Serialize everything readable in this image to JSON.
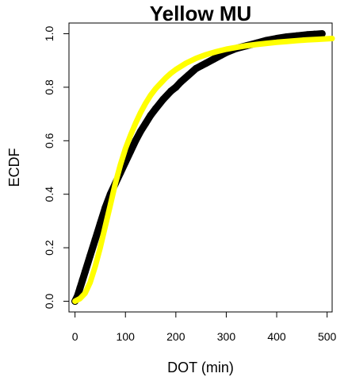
{
  "chart_data": {
    "type": "line",
    "title": "Yellow MU",
    "xlabel": "DOT (min)",
    "ylabel": "ECDF",
    "xlim": [
      -12,
      510
    ],
    "ylim": [
      -0.04,
      1.04
    ],
    "xticks": [
      "0",
      "100",
      "200",
      "300",
      "400",
      "500"
    ],
    "yticks": [
      "0.0",
      "0.2",
      "0.4",
      "0.6",
      "0.8",
      "1.0"
    ],
    "grid": false,
    "legend": "none",
    "series": [
      {
        "style": "empirical-points",
        "color": "#000000",
        "x": [
          0,
          5,
          10,
          15,
          20,
          30,
          40,
          50,
          60,
          70,
          80,
          90,
          100,
          110,
          120,
          130,
          140,
          150,
          160,
          175,
          190,
          200,
          210,
          225,
          240,
          250,
          260,
          275,
          290,
          300,
          320,
          340,
          360,
          380,
          400,
          420,
          440,
          460,
          475,
          490
        ],
        "y": [
          0.0,
          0.02,
          0.05,
          0.08,
          0.11,
          0.17,
          0.23,
          0.29,
          0.35,
          0.4,
          0.44,
          0.48,
          0.52,
          0.56,
          0.6,
          0.635,
          0.665,
          0.695,
          0.72,
          0.755,
          0.785,
          0.8,
          0.82,
          0.845,
          0.87,
          0.88,
          0.89,
          0.905,
          0.92,
          0.93,
          0.945,
          0.955,
          0.965,
          0.975,
          0.982,
          0.988,
          0.992,
          0.996,
          0.998,
          1.0
        ]
      },
      {
        "style": "fitted-curve",
        "color": "#ffff00",
        "x": [
          0,
          10,
          20,
          30,
          40,
          50,
          60,
          70,
          80,
          90,
          100,
          110,
          120,
          130,
          140,
          150,
          160,
          170,
          180,
          190,
          200,
          220,
          240,
          260,
          280,
          300,
          320,
          340,
          360,
          380,
          400,
          420,
          440,
          460,
          480,
          500,
          510
        ],
        "y": [
          0.0,
          0.01,
          0.03,
          0.07,
          0.13,
          0.2,
          0.28,
          0.36,
          0.44,
          0.51,
          0.57,
          0.62,
          0.665,
          0.705,
          0.74,
          0.77,
          0.795,
          0.815,
          0.835,
          0.852,
          0.866,
          0.89,
          0.908,
          0.922,
          0.933,
          0.942,
          0.949,
          0.955,
          0.96,
          0.964,
          0.968,
          0.971,
          0.974,
          0.977,
          0.979,
          0.981,
          0.982
        ]
      }
    ]
  }
}
